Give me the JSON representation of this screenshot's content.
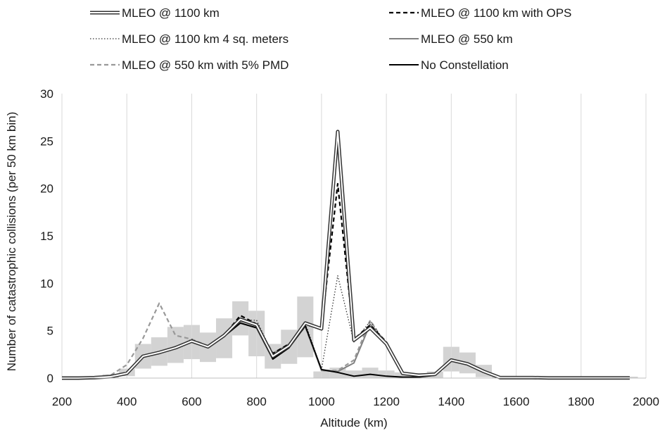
{
  "chart_data": {
    "type": "line",
    "xlabel": "Altitude (km)",
    "ylabel": "Number of catastrophic collisions (per 50 km bin)",
    "xlim": [
      200,
      2000
    ],
    "ylim": [
      0,
      30
    ],
    "x_ticks": [
      200,
      400,
      600,
      800,
      1000,
      1200,
      1400,
      1600,
      1800,
      2000
    ],
    "y_ticks": [
      0,
      5,
      10,
      15,
      20,
      25,
      30
    ],
    "grid": "vertical",
    "legend_position": "top",
    "x": [
      200,
      250,
      300,
      350,
      400,
      450,
      500,
      550,
      600,
      650,
      700,
      750,
      800,
      850,
      900,
      950,
      1000,
      1050,
      1100,
      1150,
      1200,
      1250,
      1300,
      1350,
      1400,
      1450,
      1500,
      1550,
      1600,
      1650,
      1700,
      1750,
      1800,
      1850,
      1900,
      1950
    ],
    "series": [
      {
        "name": "MLEO @ 1100 km",
        "style": "double",
        "color": "#333333",
        "values": [
          0,
          0,
          0.05,
          0.15,
          0.5,
          2.3,
          2.7,
          3.2,
          3.9,
          3.3,
          4.5,
          6.2,
          5.6,
          2.3,
          3.4,
          5.8,
          5.2,
          26,
          4,
          5.3,
          3.6,
          0.5,
          0.3,
          0.4,
          1.9,
          1.5,
          0.7,
          0.05,
          0.05,
          0.05,
          0.02,
          0.02,
          0.02,
          0.02,
          0.02,
          0.02
        ]
      },
      {
        "name": "MLEO @ 1100 km with OPS",
        "style": "dashed",
        "color": "#000000",
        "values": [
          0,
          0,
          0.05,
          0.15,
          0.5,
          2.3,
          2.6,
          3.3,
          4,
          3.3,
          4.5,
          6.6,
          5.7,
          2.6,
          3.6,
          5.6,
          5.3,
          20.5,
          4.1,
          5.6,
          3.8,
          0.5,
          0.3,
          0.4,
          2,
          1.5,
          0.7,
          0.05,
          0.05,
          0.05,
          0.02,
          0.02,
          0.02,
          0.02,
          0.02,
          0.02
        ]
      },
      {
        "name": "MLEO @ 1100 km 4 sq. meters",
        "style": "dotted",
        "color": "#333333",
        "values": [
          0,
          0,
          0.05,
          0.15,
          0.5,
          2.3,
          2.7,
          3.2,
          4.1,
          3.3,
          4.6,
          6.1,
          6.1,
          2.5,
          3.5,
          5.8,
          0.9,
          10.8,
          3.8,
          6,
          3.6,
          0.5,
          0.3,
          0.4,
          1.9,
          1.5,
          0.7,
          0.05,
          0.05,
          0.05,
          0.02,
          0.02,
          0.02,
          0.02,
          0.02,
          0.02
        ]
      },
      {
        "name": "MLEO @ 550 km",
        "style": "solid",
        "color": "#808080",
        "values": [
          0,
          0,
          0.05,
          0.15,
          0.5,
          2.4,
          2.6,
          3.2,
          4,
          3.3,
          4.6,
          6,
          5.6,
          2.6,
          3.6,
          5.5,
          0.8,
          0.7,
          1.6,
          5.7,
          3.6,
          0.5,
          0.3,
          0.4,
          2,
          1.5,
          0.7,
          0.05,
          0.05,
          0.05,
          0.02,
          0.02,
          0.02,
          0.02,
          0.02,
          0.02
        ]
      },
      {
        "name": "MLEO @ 550 km with 5% PMD",
        "style": "dashed",
        "color": "#999999",
        "values": [
          0,
          0,
          0.05,
          0.3,
          1.4,
          4.2,
          7.9,
          4.5,
          4.1,
          3.4,
          4.4,
          6.2,
          5.5,
          2.5,
          3.5,
          5.4,
          0.8,
          0.8,
          1.9,
          6.1,
          3.5,
          0.5,
          0.3,
          0.4,
          2,
          1.5,
          0.7,
          0.05,
          0.05,
          0.05,
          0.02,
          0.02,
          0.02,
          0.02,
          0.02,
          0.02
        ]
      },
      {
        "name": "No Constellation",
        "style": "solid",
        "color": "#000000",
        "values": [
          0,
          0,
          0.05,
          0.15,
          0.5,
          2.3,
          2.6,
          3.2,
          3.9,
          3.3,
          4.4,
          5.8,
          5.3,
          2,
          3.2,
          5.5,
          0.9,
          0.6,
          0.2,
          0.4,
          0.2,
          0.1,
          0.1,
          0.3,
          1.9,
          1.4,
          0.7,
          0.05,
          0.05,
          0.05,
          0.02,
          0.02,
          0.02,
          0.02,
          0.02,
          0.02
        ]
      }
    ],
    "range_band": {
      "color": "#d3d3d3",
      "x": [
        350,
        400,
        450,
        500,
        550,
        600,
        650,
        700,
        750,
        800,
        850,
        900,
        950,
        1000,
        1050,
        1100,
        1150,
        1200,
        1250,
        1300,
        1350,
        1400,
        1450,
        1500,
        1550,
        1600,
        1650,
        1700,
        1750,
        1800,
        1850,
        1900,
        1950
      ],
      "low": [
        0,
        0.2,
        1,
        1.3,
        1.6,
        2,
        1.7,
        2.1,
        4.5,
        2.3,
        1,
        1.5,
        2.2,
        0,
        0,
        0.05,
        0,
        0,
        0,
        0,
        0,
        0.7,
        0.5,
        0.1,
        0,
        0,
        0,
        0,
        0,
        0,
        0,
        0,
        0
      ],
      "high": [
        0.4,
        1,
        3.6,
        4.3,
        5.4,
        5.6,
        4.8,
        6.3,
        8.1,
        7.1,
        3.6,
        5.1,
        8.6,
        0.7,
        1.1,
        0.8,
        1.1,
        0.8,
        0.6,
        0.5,
        0.7,
        3.3,
        2.7,
        1.4,
        0.2,
        0.15,
        0.15,
        0.15,
        0.15,
        0.15,
        0.15,
        0.15,
        0.15
      ]
    }
  }
}
